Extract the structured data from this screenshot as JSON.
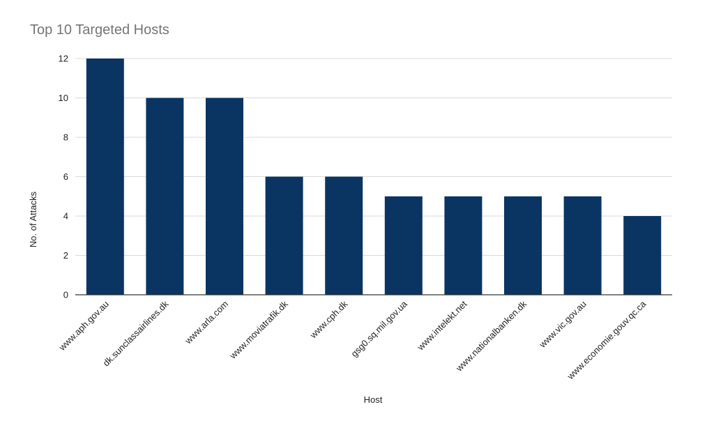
{
  "chart_data": {
    "type": "bar",
    "title": "Top 10 Targeted Hosts",
    "xlabel": "Host",
    "ylabel": "No. of Attacks",
    "categories": [
      "www.aph.gov.au",
      "dk.sunclassairlines.dk",
      "www.arla.com",
      "www.moviatrafik.dk",
      "www.cph.dk",
      "gsg0.sq.mil.gov.ua",
      "www.intelekt.net",
      "www.nationalbanken.dk",
      "www.vic.gov.au",
      "www.economie.gouv.qc.ca"
    ],
    "values": [
      12,
      10,
      10,
      6,
      6,
      5,
      5,
      5,
      5,
      4
    ],
    "ylim": [
      0,
      12
    ],
    "yticks": [
      0,
      2,
      4,
      6,
      8,
      10,
      12
    ],
    "grid": true,
    "legend": "none",
    "bar_color": "#0a3563",
    "grid_color": "#d9d9d9",
    "axis_color": "#333333"
  }
}
